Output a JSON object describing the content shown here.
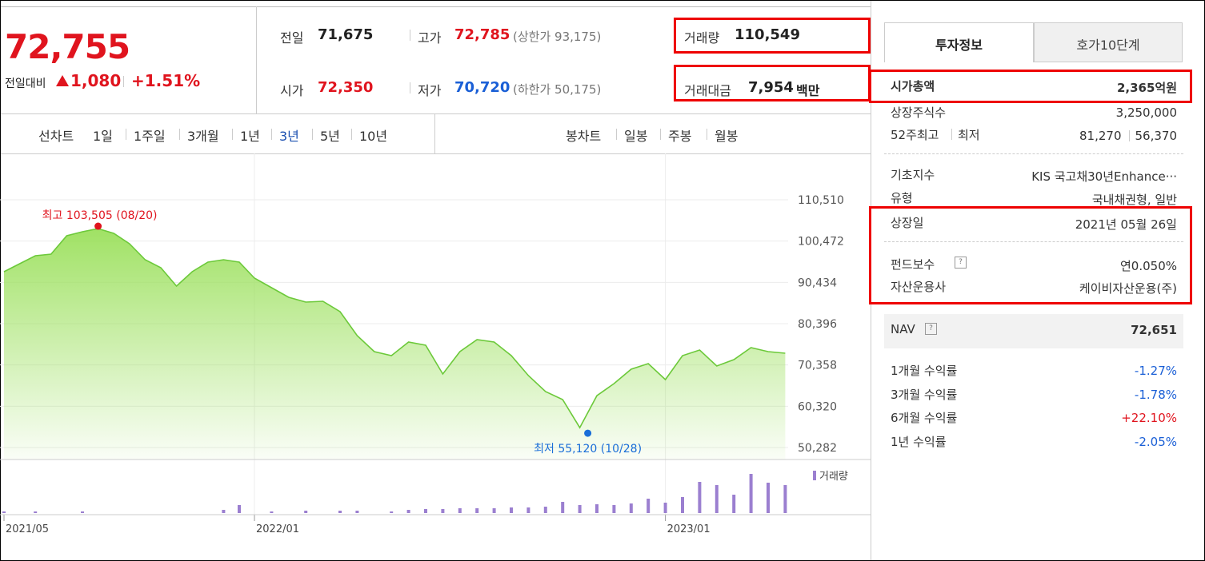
{
  "quote": {
    "price": "72,755",
    "change_label": "전일대비",
    "change": "1,080",
    "change_rate": "+1.51%"
  },
  "stats": {
    "prev": {
      "label": "전일",
      "value": "71,675"
    },
    "high": {
      "label": "고가",
      "value": "72,785",
      "limit": "(상한가 93,175)"
    },
    "open": {
      "label": "시가",
      "value": "72,350"
    },
    "low": {
      "label": "저가",
      "value": "70,720",
      "limit": "(하한가 50,175)"
    },
    "volume": {
      "label": "거래량",
      "value": "110,549"
    },
    "amount": {
      "label": "거래대금",
      "value": "7,954",
      "unit": "백만"
    }
  },
  "chart_tabs": {
    "line_label": "선차트",
    "line_periods": [
      "1일",
      "1주일",
      "3개월",
      "1년",
      "3년",
      "5년",
      "10년"
    ],
    "selected_period": 4,
    "candle_label": "봉차트",
    "candle_periods": [
      "일봉",
      "주봉",
      "월봉"
    ]
  },
  "chart_data": [
    {
      "type": "area",
      "categories": [
        "2021/05",
        null,
        null,
        null,
        null,
        null,
        null,
        null,
        null,
        null,
        null,
        null,
        null,
        null,
        null,
        null,
        "2022/01",
        null,
        null,
        null,
        null,
        null,
        null,
        null,
        null,
        null,
        null,
        null,
        null,
        null,
        null,
        null,
        null,
        null,
        null,
        null,
        null,
        null,
        null,
        null,
        "2023/01",
        null,
        null,
        null,
        null,
        null,
        null,
        null
      ],
      "values": [
        93020,
        94970,
        96910,
        97300,
        101770,
        102740,
        103505,
        102350,
        99820,
        95940,
        93990,
        89520,
        93020,
        95350,
        95940,
        95350,
        91470,
        89140,
        86810,
        85640,
        85830,
        83310,
        77480,
        73590,
        72620,
        75930,
        75150,
        68150,
        73590,
        76510,
        75930,
        72620,
        67760,
        63880,
        61930,
        55120,
        62900,
        65820,
        69320,
        70680,
        66790,
        72620,
        73980,
        70100,
        71650,
        74560,
        73590,
        73200
      ],
      "color": "#6cc93a",
      "ylim": [
        47368,
        121195
      ],
      "yticks": [
        {
          "value": 50282,
          "label": "50,282"
        },
        {
          "value": 60320,
          "label": "60,320"
        },
        {
          "value": 70358,
          "label": "70,358"
        },
        {
          "value": 80396,
          "label": "80,396"
        },
        {
          "value": 90434,
          "label": "90,434"
        },
        {
          "value": 100472,
          "label": "100,472"
        },
        {
          "value": 110510,
          "label": "110,510"
        }
      ],
      "grid": true,
      "max_label": "최고 103,505 (08/20)",
      "min_label": "최저 55,120 (10/28)",
      "max_color": "#e0141e",
      "min_color": "#1a6ed8"
    },
    {
      "type": "bar",
      "label": "거래량",
      "color": "#9b7fd0",
      "values": [
        3000,
        0,
        3000,
        0,
        0,
        3000,
        0,
        0,
        0,
        0,
        0,
        0,
        0,
        0,
        6000,
        15000,
        0,
        3000,
        0,
        4500,
        0,
        4500,
        4500,
        0,
        3000,
        6000,
        7500,
        7500,
        9000,
        9000,
        9000,
        10500,
        10500,
        12000,
        21000,
        15000,
        16500,
        15000,
        18000,
        27000,
        19500,
        30000,
        58500,
        52500,
        34500,
        73500,
        57000,
        52500
      ],
      "ylim": [
        0,
        90000
      ]
    }
  ],
  "info": {
    "tabs": [
      "투자정보",
      "호가10단계"
    ],
    "market_cap": {
      "label": "시가총액",
      "value": "2,365억원"
    },
    "shares": {
      "label": "상장주식수",
      "value": "3,250,000"
    },
    "week52": {
      "label_high": "52주최고",
      "label_low": "최저",
      "high": "81,270",
      "low": "56,370"
    },
    "index": {
      "label": "기초지수",
      "value": "KIS 국고채30년Enhance···"
    },
    "kind": {
      "label": "유형",
      "value": "국내채권형, 일반"
    },
    "listed": {
      "label": "상장일",
      "value": "2021년 05월 26일"
    },
    "fee": {
      "label": "펀드보수",
      "value": "연0.050%"
    },
    "manager": {
      "label": "자산운용사",
      "value": "케이비자산운용(주)"
    },
    "nav": {
      "label": "NAV",
      "value": "72,651"
    },
    "returns": [
      {
        "label": "1개월 수익률",
        "value": "-1.27%"
      },
      {
        "label": "3개월 수익률",
        "value": "-1.78%"
      },
      {
        "label": "6개월 수익률",
        "value": "+22.10%"
      },
      {
        "label": "1년 수익률",
        "value": "-2.05%"
      }
    ]
  }
}
